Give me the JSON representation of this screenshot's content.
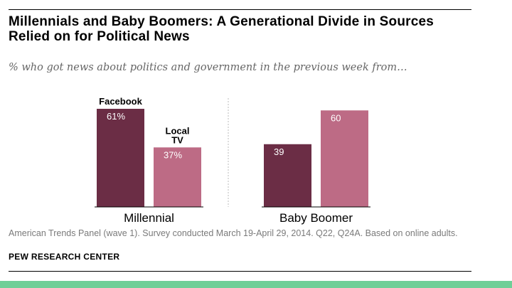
{
  "title": "Millennials and Baby Boomers: A Generational Divide in Sources Relied on for Political News",
  "subtitle": "% who got news about politics and government in the previous week from…",
  "footnote": "American Trends Panel (wave 1). Survey conducted March 19-April 29, 2014. Q22, Q24A. Based on online adults.",
  "source": "PEW RESEARCH CENTER",
  "colors": {
    "facebook": "#6b2d45",
    "local_tv": "#bd6b85",
    "bottom_band": "#6fcf97"
  },
  "chart_data": {
    "type": "bar",
    "categories": [
      "Millennial",
      "Baby Boomer"
    ],
    "series": [
      {
        "name": "Facebook",
        "values": [
          61,
          39
        ]
      },
      {
        "name": "Local TV",
        "values": [
          37,
          60
        ]
      }
    ],
    "value_labels": [
      [
        "61%",
        "39"
      ],
      [
        "37%",
        "60"
      ]
    ],
    "ylim": [
      0,
      61
    ],
    "grid": false,
    "legend": "direct labels above first group"
  }
}
